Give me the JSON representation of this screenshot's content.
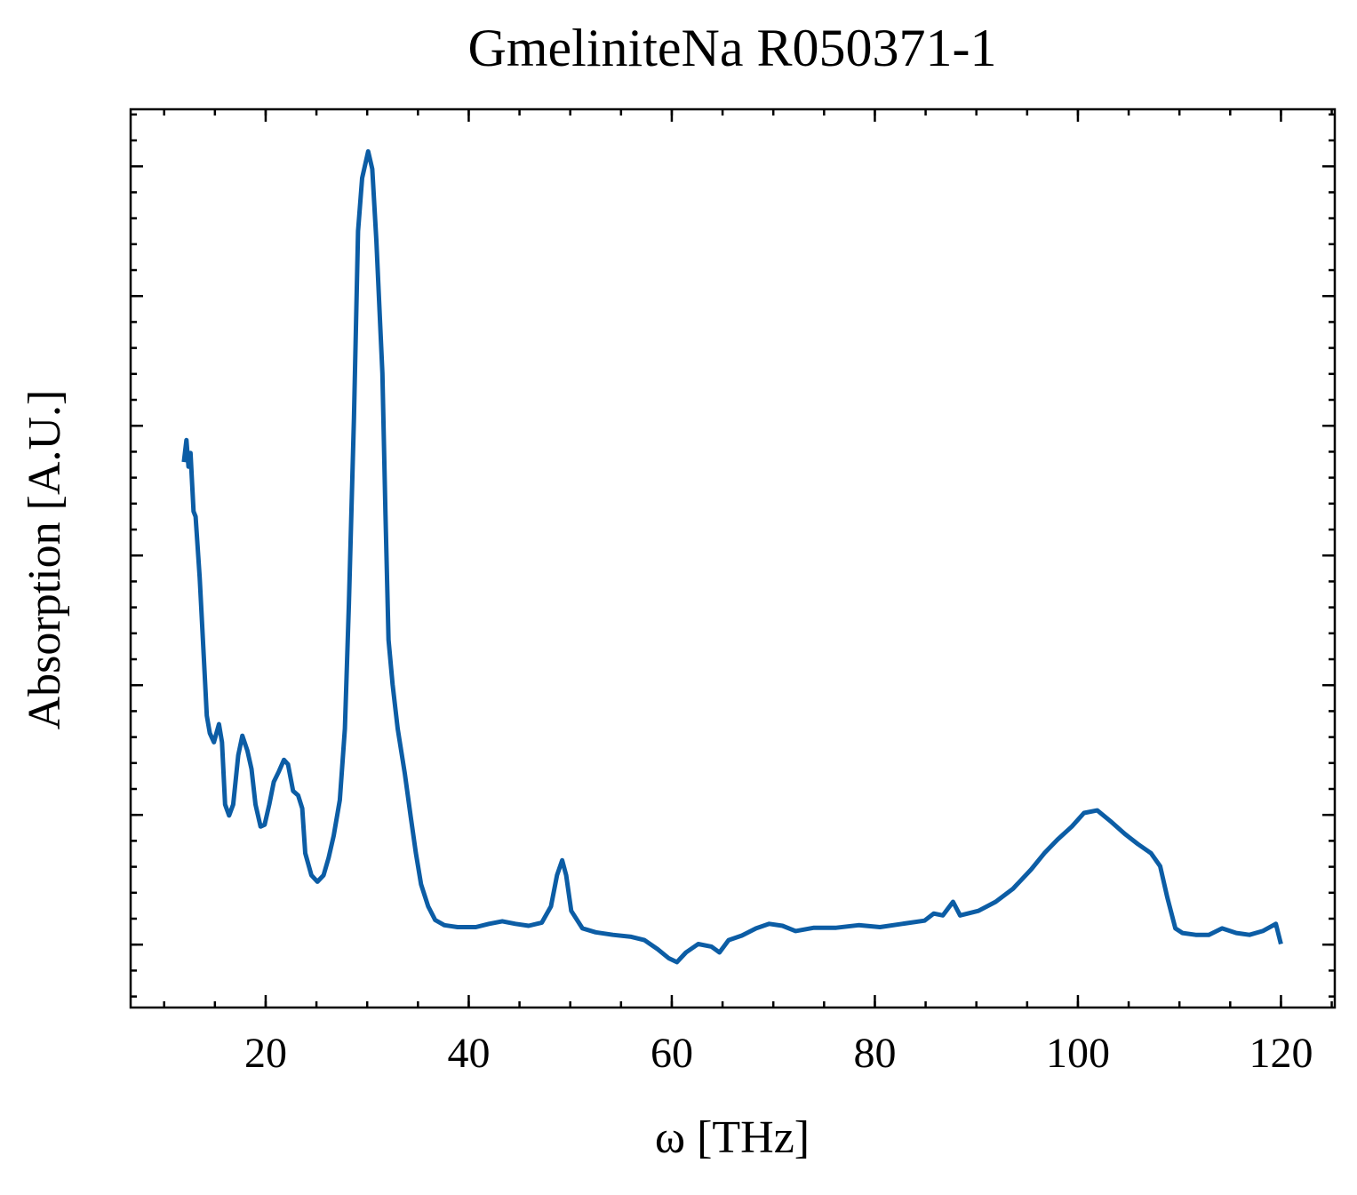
{
  "chart_data": {
    "type": "line",
    "title": "GmeliniteNa R050371-1",
    "xlabel": "ω [THz]",
    "ylabel": "Absorption [A.U.]",
    "series": [
      {
        "color": "#0c5da5",
        "x": [
          11.94,
          12.2,
          12.4,
          12.6,
          12.9,
          13.1,
          13.5,
          14.0,
          14.2,
          14.5,
          14.9,
          15.4,
          15.7,
          16.0,
          16.4,
          16.8,
          17.3,
          17.7,
          18.2,
          18.6,
          19.0,
          19.5,
          19.9,
          20.35,
          20.8,
          21.3,
          21.8,
          22.2,
          22.7,
          23.2,
          23.6,
          23.9,
          24.5,
          25.1,
          25.7,
          26.2,
          26.7,
          27.3,
          27.8,
          28.2,
          28.7,
          29.1,
          29.5,
          30.1,
          30.5,
          30.9,
          31.5,
          31.8,
          32.1,
          32.5,
          33.0,
          33.7,
          34.3,
          34.8,
          35.3,
          36.0,
          36.7,
          37.6,
          38.9,
          40.7,
          42.0,
          43.3,
          44.6,
          45.9,
          47.2,
          48.1,
          48.7,
          49.2,
          49.6,
          50.1,
          51.2,
          52.5,
          54.2,
          56.0,
          57.3,
          58.6,
          59.7,
          60.5,
          61.4,
          62.6,
          63.9,
          64.7,
          65.6,
          66.9,
          68.3,
          69.6,
          70.9,
          72.2,
          74.0,
          76.2,
          78.4,
          80.5,
          82.7,
          84.9,
          85.8,
          86.7,
          87.7,
          88.4,
          90.2,
          91.9,
          93.6,
          95.4,
          96.7,
          98.0,
          99.4,
          100.6,
          101.9,
          103.3,
          104.6,
          105.9,
          107.2,
          108.1,
          108.8,
          109.6,
          110.3,
          111.6,
          112.9,
          114.2,
          115.6,
          116.9,
          118.2,
          119.5,
          120.0
        ],
        "values": [
          0.744,
          0.778,
          0.737,
          0.758,
          0.668,
          0.66,
          0.566,
          0.415,
          0.353,
          0.326,
          0.312,
          0.34,
          0.312,
          0.216,
          0.199,
          0.216,
          0.292,
          0.322,
          0.299,
          0.271,
          0.216,
          0.182,
          0.185,
          0.216,
          0.251,
          0.267,
          0.285,
          0.278,
          0.237,
          0.23,
          0.21,
          0.141,
          0.107,
          0.097,
          0.107,
          0.134,
          0.168,
          0.223,
          0.333,
          0.525,
          0.812,
          1.1,
          1.182,
          1.223,
          1.196,
          1.086,
          0.881,
          0.662,
          0.47,
          0.401,
          0.333,
          0.264,
          0.196,
          0.141,
          0.093,
          0.059,
          0.038,
          0.03,
          0.027,
          0.027,
          0.032,
          0.036,
          0.032,
          0.029,
          0.034,
          0.059,
          0.107,
          0.13,
          0.107,
          0.052,
          0.025,
          0.019,
          0.015,
          0.012,
          0.007,
          -0.007,
          -0.021,
          -0.027,
          -0.012,
          0.001,
          -0.003,
          -0.012,
          0.007,
          0.014,
          0.025,
          0.032,
          0.029,
          0.021,
          0.026,
          0.026,
          0.03,
          0.027,
          0.032,
          0.037,
          0.048,
          0.045,
          0.066,
          0.045,
          0.052,
          0.066,
          0.086,
          0.116,
          0.141,
          0.162,
          0.182,
          0.203,
          0.207,
          0.189,
          0.171,
          0.155,
          0.141,
          0.121,
          0.073,
          0.025,
          0.018,
          0.015,
          0.015,
          0.025,
          0.018,
          0.015,
          0.021,
          0.032,
          0.001
        ]
      }
    ],
    "xlim": [
      6.7,
      125.3
    ],
    "xticks": [
      20,
      40,
      60,
      80,
      100,
      120
    ],
    "ylim": [
      -0.097,
      1.288
    ],
    "yticks": [
      0,
      0.2,
      0.4,
      0.6,
      0.8,
      1.0,
      1.2
    ]
  }
}
